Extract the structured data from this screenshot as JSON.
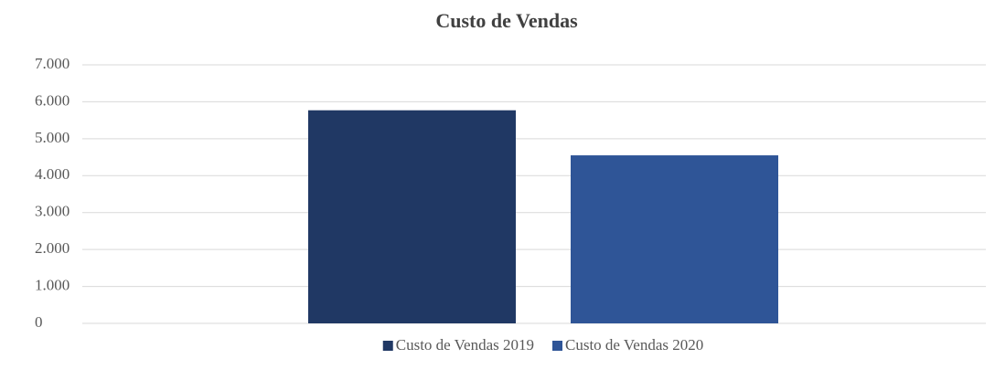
{
  "chart_data": {
    "type": "bar",
    "title": "Custo de Vendas",
    "categories": [
      null
    ],
    "series": [
      {
        "name": "Custo de Vendas 2019",
        "color": "#203864",
        "values": [
          5770
        ]
      },
      {
        "name": "Custo de Vendas 2020",
        "color": "#2f5597",
        "values": [
          4550
        ]
      }
    ],
    "ylim": [
      0,
      7000
    ],
    "yticks": [
      0,
      {
        "value": 1000,
        "label": "1.000"
      },
      {
        "value": 2000,
        "label": "2.000"
      },
      {
        "value": 3000,
        "label": "3.000"
      },
      {
        "value": 4000,
        "label": "4.000"
      },
      {
        "value": 5000,
        "label": "5.000"
      },
      {
        "value": 6000,
        "label": "6.000"
      },
      {
        "value": 7000,
        "label": "7.000"
      }
    ],
    "grid": true,
    "legend": "bottom"
  }
}
